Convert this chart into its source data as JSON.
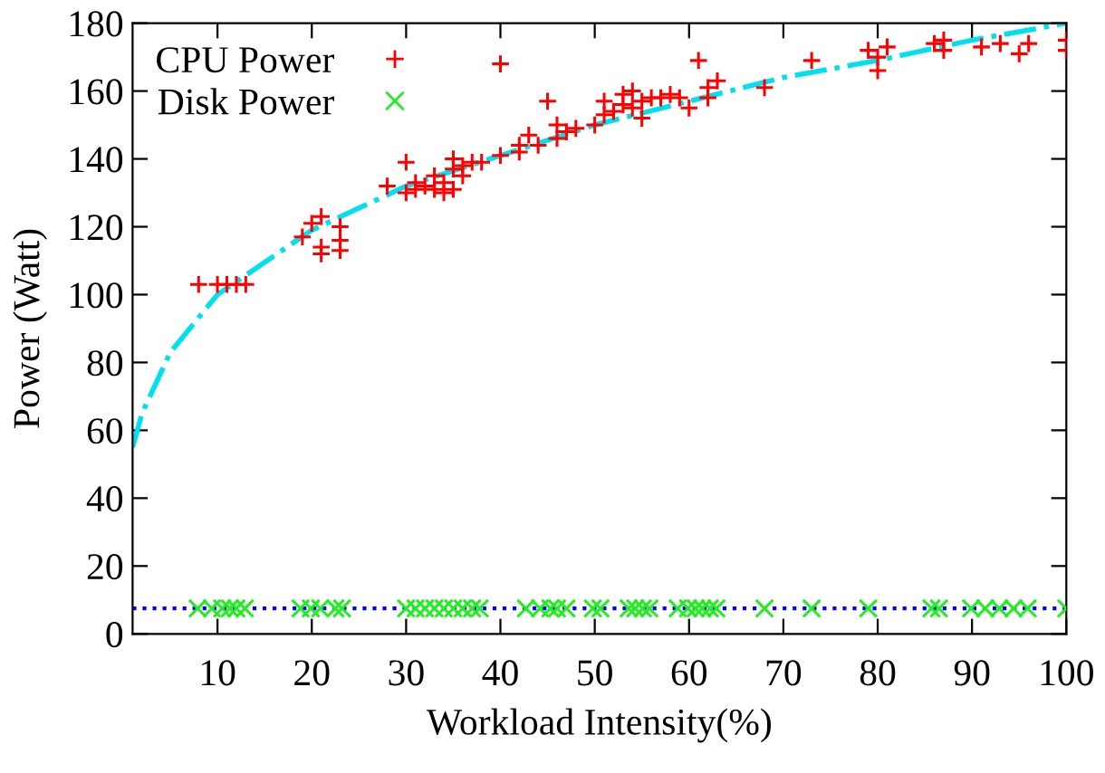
{
  "chart_data": {
    "type": "scatter",
    "xlabel": "Workload Intensity(%)",
    "ylabel": "Power (Watt)",
    "xlim": [
      1,
      100
    ],
    "ylim": [
      0,
      180
    ],
    "xticks": [
      10,
      20,
      30,
      40,
      50,
      60,
      70,
      80,
      90,
      100
    ],
    "yticks": [
      0,
      20,
      40,
      60,
      80,
      100,
      120,
      140,
      160,
      180
    ],
    "grid": false,
    "legend": "top left",
    "series": [
      {
        "name": "CPU Power",
        "color": "#ff0000",
        "marker": "plus",
        "x": [
          8,
          10,
          11,
          12,
          13,
          19,
          20,
          21,
          21,
          21,
          23,
          23,
          23,
          28,
          30,
          30,
          31,
          31,
          32,
          33,
          33,
          34,
          34,
          35,
          35,
          35,
          36,
          36,
          37,
          38,
          40,
          40,
          42,
          42,
          43,
          44,
          45,
          46,
          46,
          47,
          48,
          50,
          51,
          51,
          52,
          53,
          53,
          54,
          54,
          55,
          55,
          56,
          57,
          58,
          59,
          60,
          61,
          62,
          62,
          63,
          68,
          73,
          79,
          80,
          80,
          81,
          86,
          87,
          87,
          91,
          93,
          95,
          96,
          100,
          100
        ],
        "values": [
          103,
          103,
          103,
          103,
          103,
          117,
          121,
          123,
          114,
          112,
          120,
          116,
          113,
          132,
          139,
          130,
          131,
          133,
          132,
          131,
          135,
          130,
          133,
          131,
          140,
          137,
          138,
          135,
          139,
          139,
          168,
          141,
          144,
          142,
          147,
          144,
          157,
          150,
          146,
          148,
          149,
          150,
          153,
          157,
          154,
          156,
          159,
          160,
          155,
          157,
          152,
          158,
          158,
          159,
          158,
          155,
          169,
          158,
          161,
          163,
          161,
          169,
          172,
          170,
          166,
          173,
          174,
          172,
          175,
          173,
          174,
          171,
          174,
          175,
          172
        ]
      },
      {
        "name": "Disk Power",
        "color": "#22ee22",
        "marker": "cross",
        "x": [
          7.9,
          9.4,
          10.5,
          11.3,
          12,
          12.9,
          18.8,
          19.9,
          20.9,
          22.5,
          23.2,
          30,
          31,
          32,
          33,
          34,
          35,
          36,
          37,
          37.8,
          42.7,
          44.2,
          45.3,
          46,
          47,
          49.8,
          50.6,
          53.6,
          54.3,
          55.1,
          55.8,
          58.8,
          59.9,
          60.7,
          61.4,
          62.2,
          62.9,
          68,
          73,
          79,
          85.7,
          86.5,
          89.9,
          91.4,
          92.9,
          94.4,
          95.9,
          100
        ],
        "values": [
          7.5,
          7.5,
          7.5,
          7.5,
          7.5,
          7.5,
          7.5,
          7.5,
          7.5,
          7.5,
          7.5,
          7.5,
          7.5,
          7.5,
          7.5,
          7.5,
          7.5,
          7.5,
          7.5,
          7.5,
          7.5,
          7.5,
          7.5,
          7.5,
          7.5,
          7.5,
          7.5,
          7.5,
          7.5,
          7.5,
          7.5,
          7.5,
          7.5,
          7.5,
          7.5,
          7.5,
          7.5,
          7.5,
          7.5,
          7.5,
          7.5,
          7.5,
          7.5,
          7.5,
          7.5,
          7.5,
          7.5,
          7.5
        ]
      },
      {
        "type": "line",
        "color": "#00e0ee",
        "line_style": "dashdot",
        "x": [
          1,
          2,
          5,
          10,
          20,
          30,
          40,
          50,
          60,
          70,
          80,
          90,
          100
        ],
        "values": [
          55,
          65,
          83,
          100,
          119,
          132,
          141,
          150,
          157,
          164,
          169,
          175,
          180
        ]
      }
    ],
    "ref_lines": [
      {
        "axis": "y",
        "value": 7.5,
        "color": "#0000ff",
        "line_style": "dotted"
      }
    ]
  }
}
